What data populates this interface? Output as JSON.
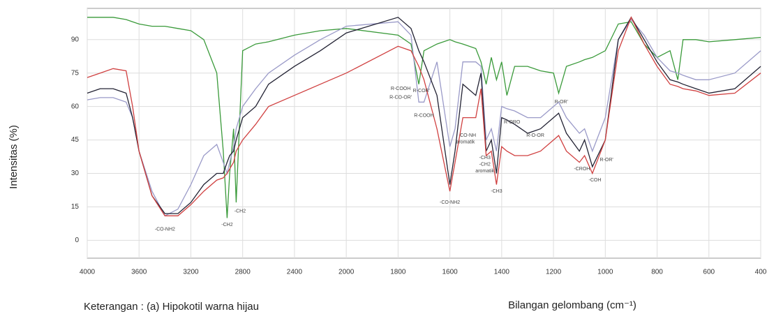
{
  "chart_data": {
    "type": "line",
    "ylabel": "Intensitas (%)",
    "xlabel": "Bilangan  gelombang (cm⁻¹)",
    "caption": "Keterangan :  (a) Hipokotil warna hijau",
    "xlim": [
      4000,
      400
    ],
    "xticks": [
      4000,
      3600,
      3200,
      2800,
      2400,
      2000,
      1800,
      1600,
      1400,
      1200,
      1000,
      800,
      600,
      400
    ],
    "ylim": [
      -8,
      104
    ],
    "yticks": [
      0,
      15,
      30,
      45,
      60,
      75,
      90
    ],
    "grid": true,
    "x": [
      4000,
      3900,
      3800,
      3700,
      3650,
      3600,
      3500,
      3400,
      3300,
      3200,
      3100,
      3000,
      2950,
      2920,
      2900,
      2870,
      2850,
      2800,
      2700,
      2600,
      2400,
      2200,
      2000,
      1800,
      1750,
      1720,
      1700,
      1650,
      1600,
      1580,
      1550,
      1500,
      1480,
      1460,
      1440,
      1420,
      1400,
      1380,
      1350,
      1300,
      1250,
      1200,
      1180,
      1150,
      1100,
      1080,
      1050,
      1000,
      950,
      900,
      850,
      800,
      750,
      720,
      700,
      650,
      600,
      500,
      400
    ],
    "series": [
      {
        "color": "#3a9a3a",
        "values": [
          100,
          100,
          100,
          99,
          98,
          97,
          96,
          96,
          95,
          94,
          90,
          75,
          40,
          10,
          30,
          50,
          17,
          85,
          88,
          89,
          92,
          94,
          95,
          92,
          88,
          70,
          85,
          88,
          90,
          89,
          88,
          86,
          80,
          70,
          82,
          72,
          80,
          65,
          78,
          78,
          76,
          75,
          66,
          78,
          80,
          81,
          82,
          85,
          97,
          98,
          88,
          82,
          85,
          72,
          90,
          90,
          89,
          90,
          91
        ]
      },
      {
        "color": "#9a9ac8",
        "values": [
          63,
          64,
          64,
          62,
          55,
          40,
          22,
          11,
          14,
          25,
          38,
          43,
          35,
          30,
          35,
          42,
          50,
          60,
          68,
          75,
          83,
          90,
          96,
          98,
          92,
          62,
          62,
          80,
          42,
          50,
          80,
          80,
          78,
          45,
          50,
          40,
          60,
          59,
          58,
          55,
          55,
          60,
          62,
          55,
          48,
          50,
          40,
          55,
          90,
          99,
          92,
          82,
          76,
          75,
          74,
          72,
          72,
          75,
          85
        ]
      },
      {
        "color": "#222233",
        "values": [
          66,
          68,
          68,
          66,
          55,
          40,
          20,
          12,
          12,
          17,
          25,
          30,
          30,
          35,
          38,
          40,
          45,
          55,
          60,
          70,
          78,
          85,
          93,
          100,
          95,
          85,
          80,
          65,
          25,
          40,
          70,
          65,
          75,
          40,
          45,
          30,
          55,
          54,
          52,
          48,
          50,
          55,
          57,
          48,
          40,
          45,
          33,
          45,
          90,
          100,
          90,
          80,
          72,
          71,
          70,
          68,
          66,
          68,
          78
        ]
      },
      {
        "color": "#d04040",
        "values": [
          73,
          75,
          77,
          76,
          60,
          40,
          20,
          11,
          11,
          16,
          22,
          27,
          28,
          30,
          32,
          35,
          40,
          45,
          52,
          60,
          65,
          70,
          75,
          87,
          85,
          78,
          72,
          50,
          22,
          35,
          55,
          55,
          68,
          38,
          40,
          25,
          42,
          40,
          38,
          38,
          40,
          45,
          47,
          40,
          35,
          38,
          30,
          45,
          85,
          100,
          88,
          78,
          70,
          69,
          68,
          67,
          65,
          66,
          75
        ]
      }
    ],
    "annotations": [
      {
        "text": "-CO-NH2",
        "x": 3400,
        "y": 5
      },
      {
        "text": "-CH2",
        "x": 2920,
        "y": 7
      },
      {
        "text": "-CH2",
        "x": 2820,
        "y": 13
      },
      {
        "text": "R-COOH",
        "x": 1790,
        "y": 68
      },
      {
        "text": "R-CO-OR'",
        "x": 1790,
        "y": 64
      },
      {
        "text": "R-COR'",
        "x": 1710,
        "y": 67
      },
      {
        "text": "R-COOH",
        "x": 1700,
        "y": 56
      },
      {
        "text": "CO-NH",
        "x": 1530,
        "y": 47
      },
      {
        "text": "aromatik",
        "x": 1540,
        "y": 44
      },
      {
        "text": "-CH3",
        "x": 1465,
        "y": 37
      },
      {
        "text": "-CH2",
        "x": 1465,
        "y": 34
      },
      {
        "text": "aromatik",
        "x": 1465,
        "y": 31
      },
      {
        "text": "-CH3",
        "x": 1420,
        "y": 22
      },
      {
        "text": "-CO-NH2",
        "x": 1600,
        "y": 17
      },
      {
        "text": "R-ORO",
        "x": 1360,
        "y": 53
      },
      {
        "text": "R-O-OR",
        "x": 1270,
        "y": 47
      },
      {
        "text": "R-OR'",
        "x": 1170,
        "y": 62
      },
      {
        "text": "-CROH",
        "x": 1090,
        "y": 32
      },
      {
        "text": "-COH",
        "x": 1040,
        "y": 27
      },
      {
        "text": "R-OR'",
        "x": 995,
        "y": 36
      }
    ]
  }
}
